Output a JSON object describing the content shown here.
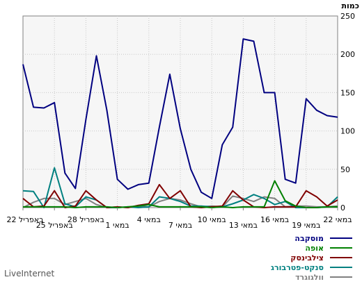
{
  "chart_data": {
    "type": "line",
    "ylabel": "כמות",
    "ylim": [
      0,
      250
    ],
    "yticks": [
      0,
      50,
      100,
      150,
      200,
      250
    ],
    "grid": true,
    "legend_position": "bottom-right",
    "x": [
      "22 באפריל",
      "23 באפריל",
      "24 באפריל",
      "25 באפריל",
      "26 באפריל",
      "27 באפריל",
      "28 באפריל",
      "29 באפריל",
      "30 באפריל",
      "1 במאי",
      "2 במאי",
      "3 במאי",
      "4 במאי",
      "5 במאי",
      "6 במאי",
      "7 במאי",
      "8 במאי",
      "9 במאי",
      "10 במאי",
      "11 במאי",
      "12 במאי",
      "13 במאי",
      "14 במאי",
      "15 במאי",
      "16 במאי",
      "17 במאי",
      "18 במאי",
      "19 במאי",
      "20 במאי",
      "21 במאי",
      "22 במאי"
    ],
    "x_tick_labels": [
      "22 באפריל",
      "25 באפריל",
      "28 באפריל",
      "1 במאי",
      "4 במאי",
      "7 במאי",
      "10 במאי",
      "13 במאי",
      "16 במאי",
      "19 במאי",
      "22 במאי"
    ],
    "series": [
      {
        "name": "מוסקבה",
        "color": "#000080",
        "values": [
          187,
          131,
          130,
          137,
          45,
          25,
          115,
          198,
          127,
          37,
          24,
          30,
          32,
          105,
          174,
          103,
          50,
          20,
          12,
          82,
          105,
          220,
          217,
          150,
          150,
          37,
          32,
          142,
          127,
          120,
          118
        ]
      },
      {
        "name": "אופה",
        "color": "#008000",
        "values": [
          1,
          1,
          1,
          1,
          1,
          0,
          1,
          1,
          1,
          0,
          1,
          2,
          4,
          1,
          1,
          1,
          1,
          1,
          0,
          1,
          0,
          1,
          1,
          1,
          35,
          9,
          2,
          0,
          0,
          1,
          1
        ]
      },
      {
        "name": "צילבינסק",
        "color": "#800000",
        "values": [
          12,
          1,
          2,
          22,
          0,
          2,
          22,
          10,
          0,
          1,
          0,
          3,
          5,
          30,
          12,
          22,
          1,
          0,
          1,
          2,
          22,
          10,
          1,
          0,
          1,
          1,
          1,
          22,
          14,
          2,
          10
        ]
      },
      {
        "name": "סנקט-פטרבורג",
        "color": "#008080",
        "values": [
          22,
          21,
          0,
          52,
          5,
          1,
          14,
          10,
          0,
          0,
          1,
          0,
          1,
          14,
          12,
          8,
          2,
          2,
          1,
          1,
          5,
          10,
          17,
          12,
          4,
          8,
          0,
          0,
          0,
          1,
          14
        ]
      },
      {
        "name": "וולגוגרד",
        "color": "#808080",
        "values": [
          0,
          7,
          12,
          12,
          4,
          8,
          12,
          4,
          0,
          1,
          0,
          2,
          1,
          8,
          12,
          10,
          5,
          1,
          2,
          1,
          15,
          12,
          8,
          14,
          12,
          1,
          2,
          2,
          1,
          1,
          2
        ]
      }
    ]
  },
  "footer": {
    "brand": "LiveInternet"
  }
}
